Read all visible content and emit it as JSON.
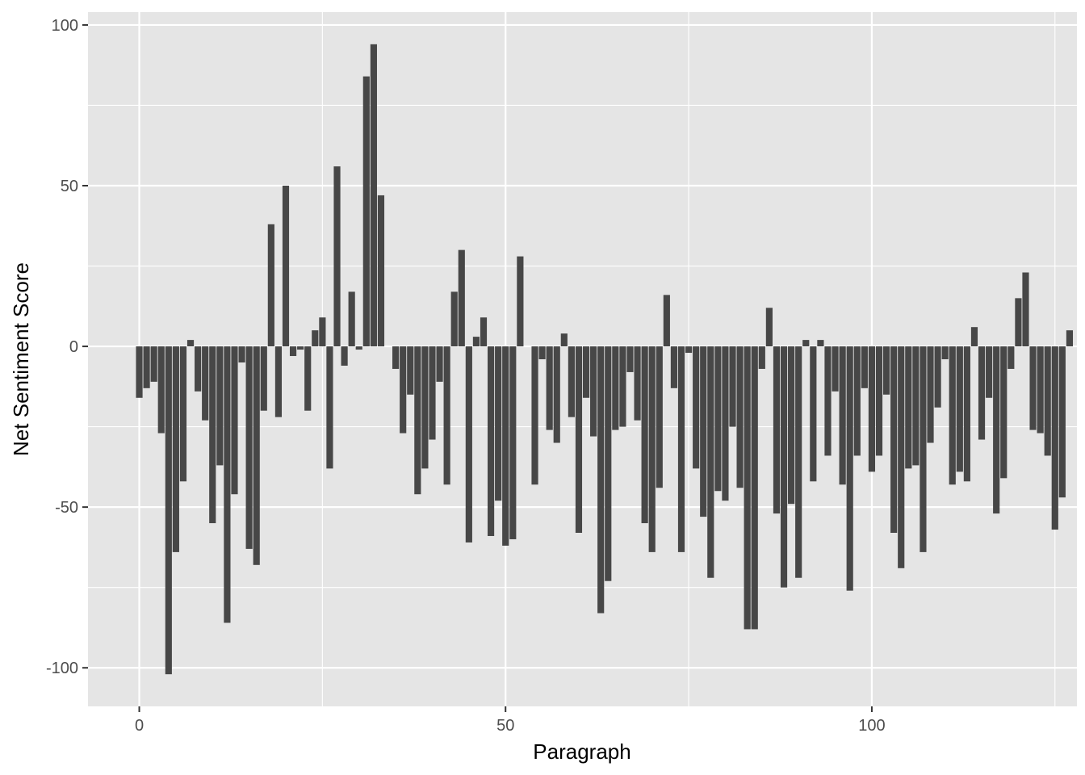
{
  "chart_data": {
    "type": "bar",
    "xlabel": "Paragraph",
    "ylabel": "Net Sentiment Score",
    "xlim": [
      -7,
      128
    ],
    "ylim": [
      -112,
      104
    ],
    "x_ticks": [
      0,
      50,
      100
    ],
    "x_tick_labels": [
      "0",
      "50",
      "100"
    ],
    "y_ticks": [
      -100,
      -50,
      0,
      50,
      100
    ],
    "y_tick_labels": [
      "-100",
      "-50",
      "0",
      "50",
      "100"
    ],
    "grid": true,
    "panel_background": "#e5e5e5",
    "grid_color": "#ffffff",
    "bar_color": "#474747",
    "x": [
      0,
      1,
      2,
      3,
      4,
      5,
      6,
      7,
      8,
      9,
      10,
      11,
      12,
      13,
      14,
      15,
      16,
      17,
      18,
      19,
      20,
      21,
      22,
      23,
      24,
      25,
      26,
      27,
      28,
      29,
      30,
      31,
      32,
      33,
      34,
      35,
      36,
      37,
      38,
      39,
      40,
      41,
      42,
      43,
      44,
      45,
      46,
      47,
      48,
      49,
      50,
      51,
      52,
      53,
      54,
      55,
      56,
      57,
      58,
      59,
      60,
      61,
      62,
      63,
      64,
      65,
      66,
      67,
      68,
      69,
      70,
      71,
      72,
      73,
      74,
      75,
      76,
      77,
      78,
      79,
      80,
      81,
      82,
      83,
      84,
      85,
      86,
      87,
      88,
      89,
      90,
      91,
      92,
      93,
      94,
      95,
      96,
      97,
      98,
      99,
      100,
      101,
      102,
      103,
      104,
      105,
      106,
      107,
      108,
      109,
      110,
      111,
      112,
      113,
      114,
      115,
      116,
      117,
      118,
      119,
      120,
      121,
      122,
      123,
      124,
      125,
      126,
      127
    ],
    "values": [
      -16,
      -13,
      -11,
      -27,
      -102,
      -64,
      -42,
      2,
      -14,
      -23,
      -55,
      -37,
      -86,
      -46,
      -5,
      -63,
      -68,
      -20,
      38,
      -22,
      50,
      -3,
      -1,
      -20,
      5,
      9,
      -38,
      56,
      -6,
      17,
      -1,
      84,
      94,
      47,
      0,
      -7,
      -27,
      -15,
      -46,
      -38,
      -29,
      -11,
      -43,
      17,
      30,
      -61,
      3,
      9,
      -59,
      -48,
      -62,
      -60,
      28,
      0,
      -43,
      -4,
      -26,
      -30,
      4,
      -22,
      -58,
      -16,
      -28,
      -83,
      -73,
      -26,
      -25,
      -8,
      -23,
      -55,
      -64,
      -44,
      16,
      -13,
      -64,
      -2,
      -38,
      -53,
      -72,
      -45,
      -48,
      -25,
      -44,
      -88,
      -88,
      -7,
      12,
      -52,
      -75,
      -49,
      -72,
      2,
      -42,
      2,
      -34,
      -14,
      -43,
      -76,
      -34,
      -13,
      -39,
      -34,
      -15,
      -58,
      -69,
      -38,
      -37,
      -64,
      -30,
      -19,
      -4,
      -43,
      -39,
      -42,
      6,
      -29,
      -16,
      -52,
      -41,
      -7,
      15,
      23,
      -26,
      -27,
      -34,
      -57,
      -47,
      5
    ]
  }
}
